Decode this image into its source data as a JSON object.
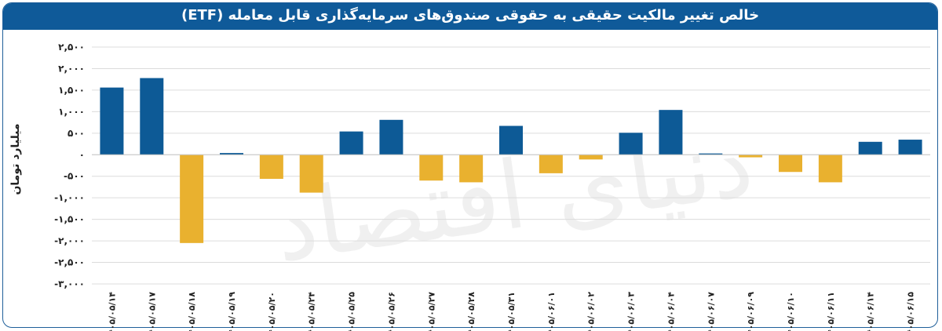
{
  "chart_data": {
    "type": "bar",
    "title": "خالص تغییر مالکیت حقیقی به حقوقی صندوق‌های سرمایه‌گذاری قابل معامله (ETF)",
    "ylabel": "میلیارد تومان",
    "xlabel": "",
    "ylim": [
      -3000,
      2500
    ],
    "yticks": [
      2500,
      2000,
      1500,
      1000,
      500,
      0,
      -500,
      -1000,
      -1500,
      -2000,
      -2500,
      -3000
    ],
    "ytick_labels": [
      "۲,۵۰۰",
      "۲,۰۰۰",
      "۱,۵۰۰",
      "۱,۰۰۰",
      "۵۰۰",
      "۰",
      "-۵۰۰",
      "-۱,۰۰۰",
      "-۱,۵۰۰",
      "-۲,۰۰۰",
      "-۲,۵۰۰",
      "-۳,۰۰۰"
    ],
    "grid": true,
    "categories": [
      "۱۴۰۵/۰۵/۱۴",
      "۱۴۰۵/۰۵/۱۷",
      "۱۴۰۵/۰۵/۱۸",
      "۱۴۰۵/۰۵/۱۹",
      "۱۴۰۵/۰۵/۲۰",
      "۱۴۰۵/۰۵/۲۴",
      "۱۴۰۵/۰۵/۲۵",
      "۱۴۰۵/۰۵/۲۶",
      "۱۴۰۵/۰۵/۲۷",
      "۱۴۰۵/۰۵/۲۸",
      "۱۴۰۵/۰۵/۳۱",
      "۱۴۰۵/۰۶/۰۱",
      "۱۴۰۵/۰۶/۰۲",
      "۱۴۰۵/۰۶/۰۳",
      "۱۴۰۵/۰۶/۰۴",
      "۱۴۰۵/۰۶/۰۷",
      "۱۴۰۵/۰۶/۰۹",
      "۱۴۰۵/۰۶/۱۰",
      "۱۴۰۵/۰۶/۱۱",
      "۱۴۰۵/۰۶/۱۴",
      "۱۴۰۵/۰۶/۱۵"
    ],
    "values": [
      1560,
      1780,
      -2050,
      40,
      -560,
      -880,
      540,
      810,
      -600,
      -640,
      670,
      -430,
      -110,
      510,
      1040,
      30,
      -60,
      -400,
      -640,
      300,
      350
    ],
    "colors": {
      "positive": "#0d5a96",
      "negative": "#e9b12f"
    },
    "watermark": "دنیای اقتصاد"
  }
}
